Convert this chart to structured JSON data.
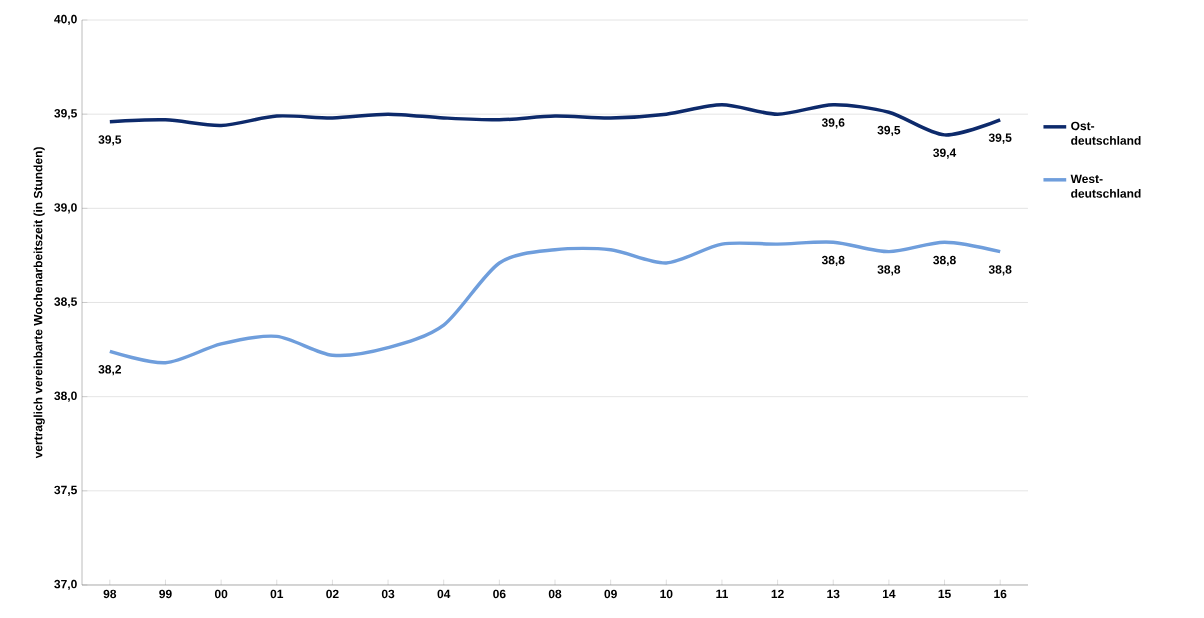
{
  "chart_data": {
    "type": "line",
    "ylabel": "vertraglich vereinbarte Wochenarbeitszeit  (in Stunden)",
    "categories": [
      "98",
      "99",
      "00",
      "01",
      "02",
      "03",
      "04",
      "06",
      "08",
      "09",
      "10",
      "11",
      "12",
      "13",
      "14",
      "15",
      "16"
    ],
    "series": [
      {
        "name": "Ost-deutschland",
        "color": "#0d2a6b",
        "values": [
          39.46,
          39.47,
          39.44,
          39.49,
          39.48,
          39.5,
          39.48,
          39.47,
          39.49,
          39.48,
          39.5,
          39.55,
          39.5,
          39.55,
          39.51,
          39.39,
          39.47
        ],
        "value_labels": [
          "39,5",
          null,
          null,
          null,
          null,
          null,
          null,
          null,
          null,
          null,
          null,
          null,
          null,
          "39,6",
          "39,5",
          "39,4",
          "39,5"
        ]
      },
      {
        "name": "West-deutschland",
        "color": "#6f9edc",
        "values": [
          38.24,
          38.18,
          38.28,
          38.32,
          38.22,
          38.26,
          38.38,
          38.71,
          38.78,
          38.78,
          38.71,
          38.81,
          38.81,
          38.82,
          38.77,
          38.82,
          38.77
        ],
        "value_labels": [
          "38,2",
          null,
          null,
          null,
          null,
          null,
          null,
          null,
          null,
          null,
          null,
          null,
          null,
          "38,8",
          "38,8",
          "38,8",
          "38,8"
        ]
      }
    ],
    "ylim": [
      37.0,
      40.0
    ],
    "yticks": [
      {
        "value": 37.0,
        "label": "37,0"
      },
      {
        "value": 37.5,
        "label": "37,5"
      },
      {
        "value": 38.0,
        "label": "38,0"
      },
      {
        "value": 38.5,
        "label": "38,5"
      },
      {
        "value": 39.0,
        "label": "39,0"
      },
      {
        "value": 39.5,
        "label": "39,5"
      },
      {
        "value": 40.0,
        "label": "40,0"
      }
    ],
    "grid": "y",
    "legend": "right",
    "marker": "none",
    "line_style": "solid"
  }
}
